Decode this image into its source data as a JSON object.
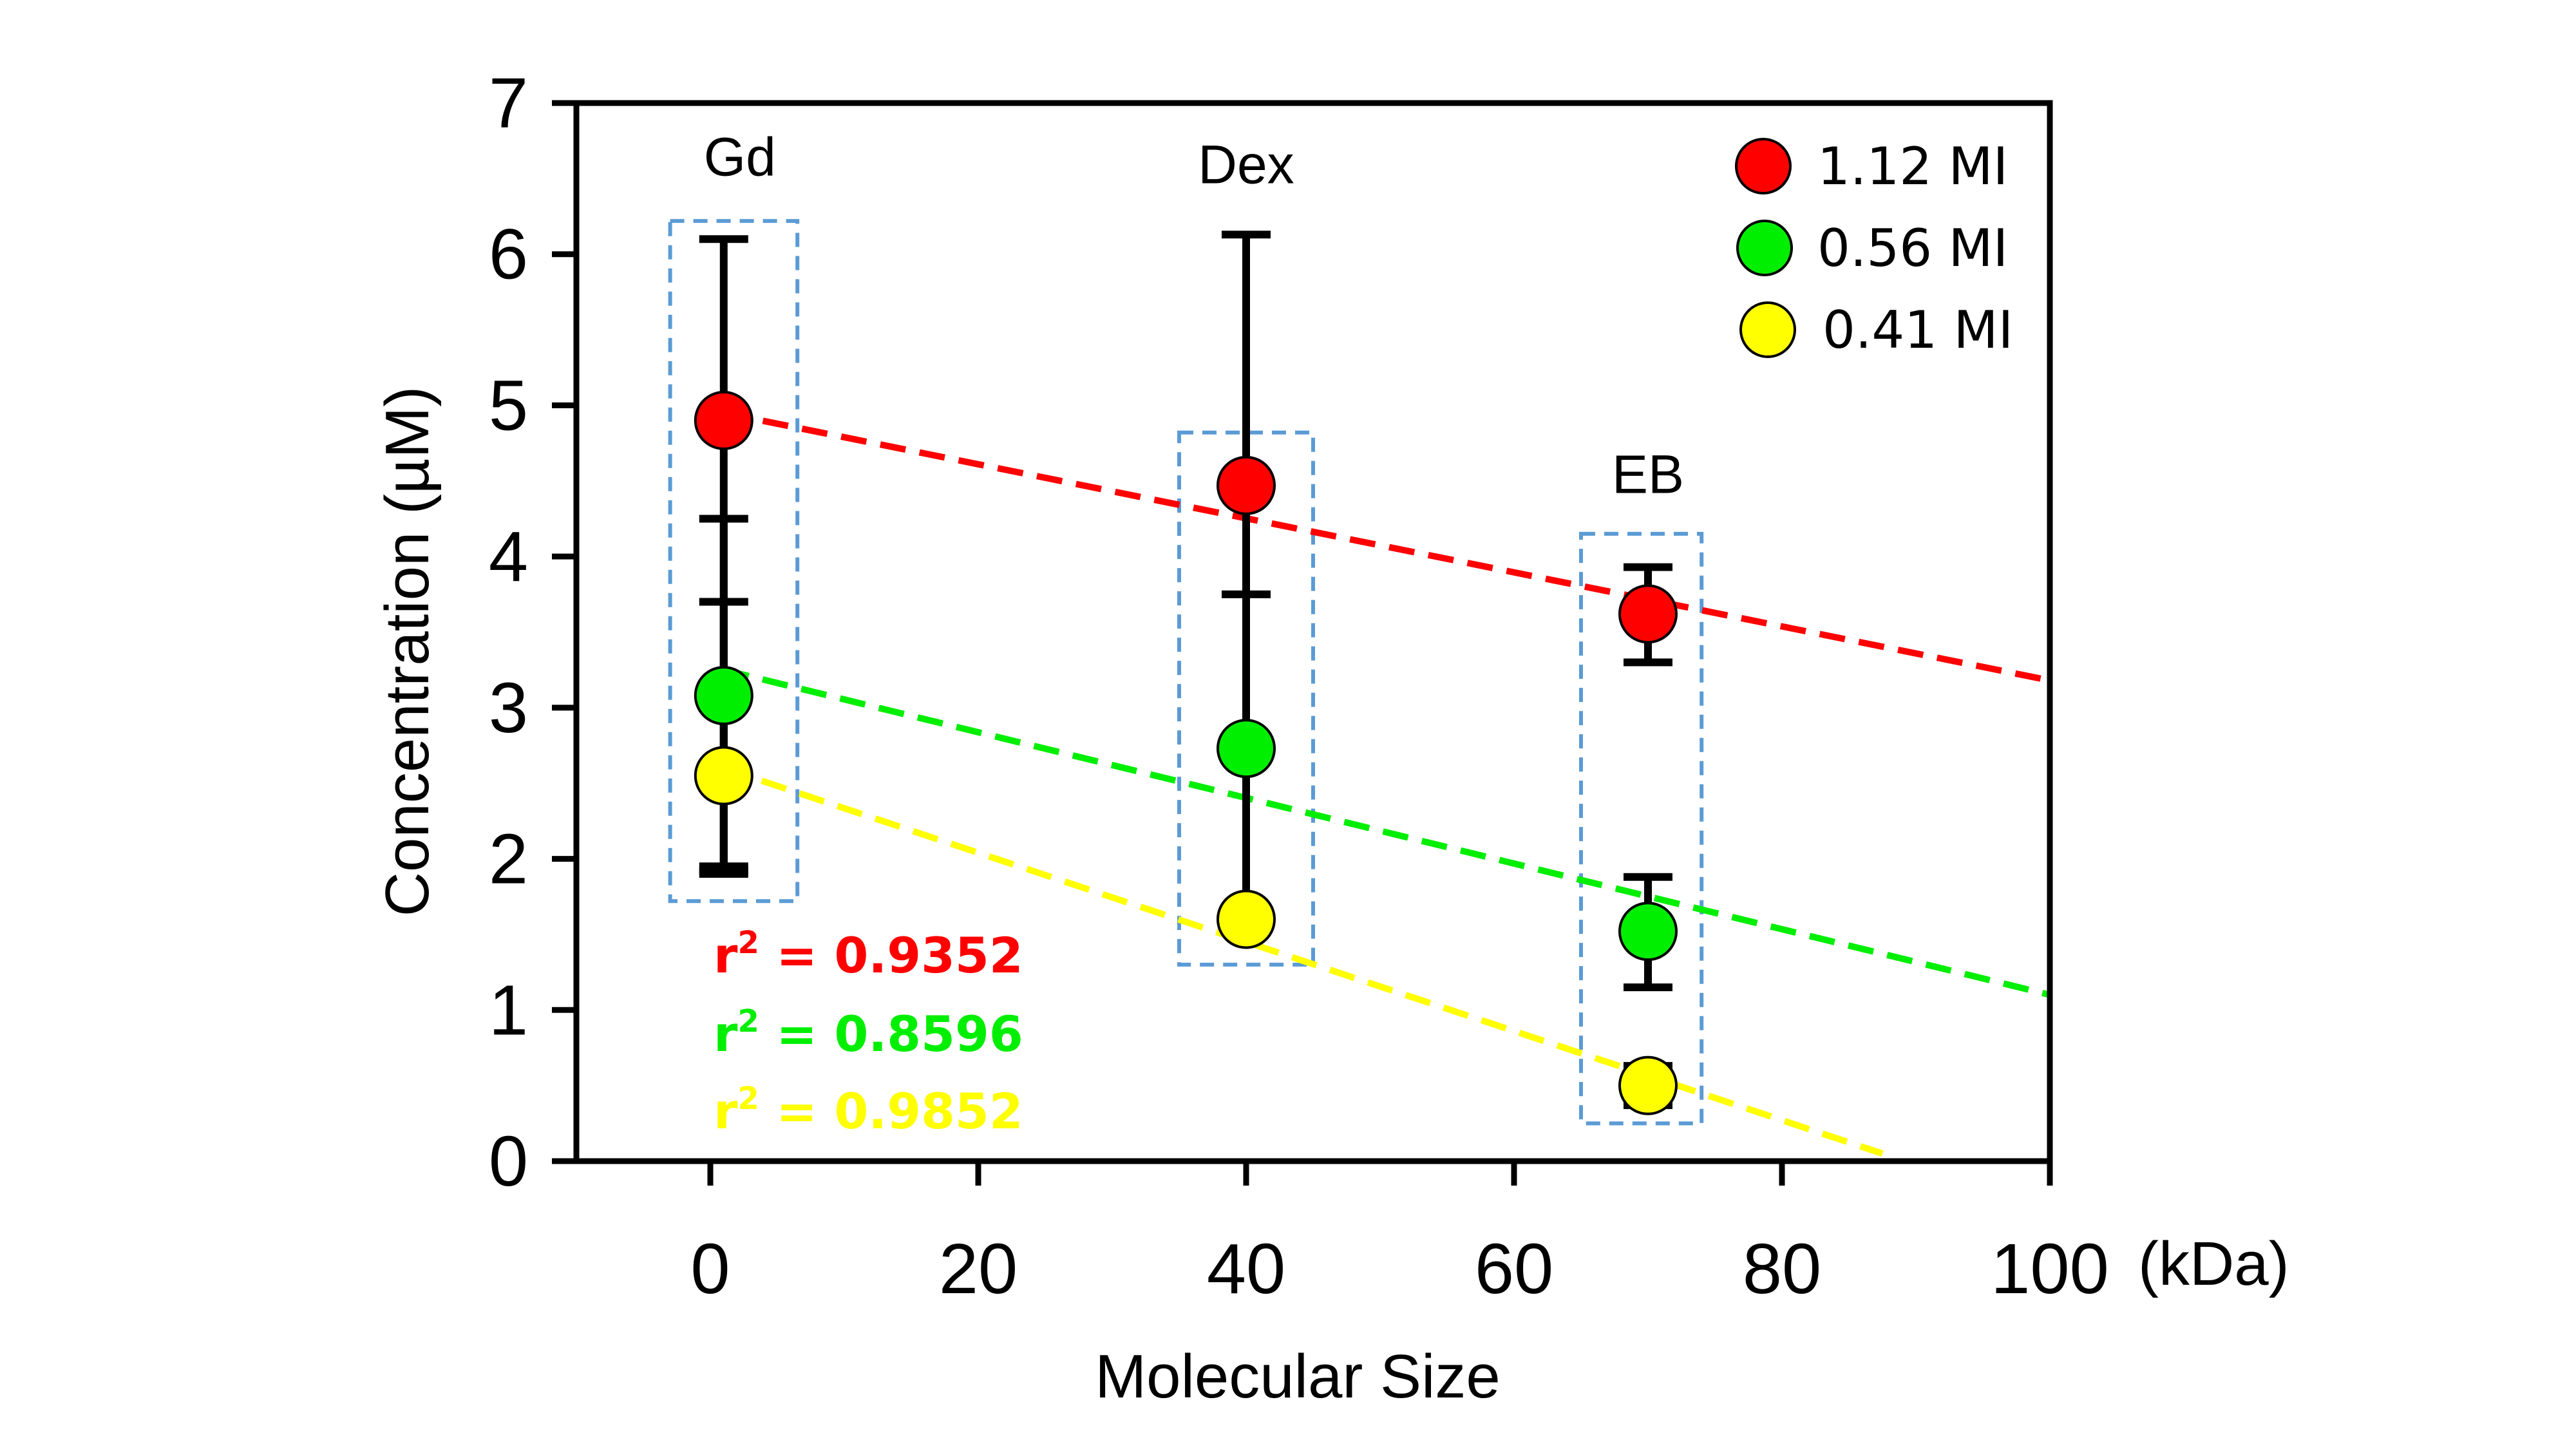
{
  "chart_data": {
    "type": "scatter",
    "title": "",
    "xlabel": "Molecular Size",
    "xunit": "(kDa)",
    "ylabel": "Concentration (µM)",
    "xlim": [
      -10,
      100
    ],
    "ylim": [
      0,
      7
    ],
    "xticks": [
      0,
      20,
      40,
      60,
      80,
      100
    ],
    "yticks": [
      0,
      1,
      2,
      3,
      4,
      5,
      6,
      7
    ],
    "xtick_labels": [
      "0",
      "20",
      "40",
      "60",
      "80",
      "100"
    ],
    "ytick_labels": [
      "0",
      "1",
      "2",
      "3",
      "4",
      "5",
      "6",
      "7"
    ],
    "grid": false,
    "legend_position": "top-right",
    "groups": [
      {
        "label": "Gd",
        "x": 1,
        "box": {
          "x0": -3,
          "x1": 6.5,
          "y0": 1.72,
          "y1": 6.22
        }
      },
      {
        "label": "Dex",
        "x": 40,
        "box": {
          "x0": 35,
          "x1": 45,
          "y0": 1.3,
          "y1": 4.82
        }
      },
      {
        "label": "EB",
        "x": 70,
        "box": {
          "x0": 65,
          "x1": 74,
          "y0": 0.25,
          "y1": 4.15
        }
      }
    ],
    "series": [
      {
        "name": "1.12 MI",
        "color": "#ff0000",
        "x": [
          1,
          40,
          70
        ],
        "y": [
          4.9,
          4.47,
          3.62
        ],
        "err_low": [
          1.9,
          1.6,
          3.3
        ],
        "err_high": [
          6.1,
          6.13,
          3.93
        ],
        "fit": {
          "x": [
            1,
            100
          ],
          "y": [
            4.95,
            3.18
          ]
        },
        "r2_label": "r",
        "r2_sup": "2",
        "r2_value": " = 0.9352"
      },
      {
        "name": "0.56 MI",
        "color": "#00ee00",
        "x": [
          1,
          40,
          70
        ],
        "y": [
          3.08,
          2.73,
          1.52
        ],
        "err_low": [
          1.92,
          1.62,
          1.15
        ],
        "err_high": [
          4.25,
          3.75,
          1.88
        ],
        "fit": {
          "x": [
            1,
            100
          ],
          "y": [
            3.25,
            1.1
          ]
        },
        "r2_label": "r",
        "r2_sup": "2",
        "r2_value": " = 0.8596"
      },
      {
        "name": "0.41 MI",
        "color": "#ffff00",
        "x": [
          1,
          40,
          70
        ],
        "y": [
          2.55,
          1.6,
          0.5
        ],
        "err_low": [
          1.95,
          1.6,
          0.37
        ],
        "err_high": [
          3.7,
          1.6,
          0.63
        ],
        "fit": {
          "x": [
            1,
            87.5
          ],
          "y": [
            2.6,
            0.05
          ]
        },
        "r2_label": "r",
        "r2_sup": "2",
        "r2_value": " = 0.9852"
      }
    ]
  },
  "colors": {
    "axis": "#000000",
    "box": "#5b9bd5",
    "errorbar": "#000000"
  }
}
